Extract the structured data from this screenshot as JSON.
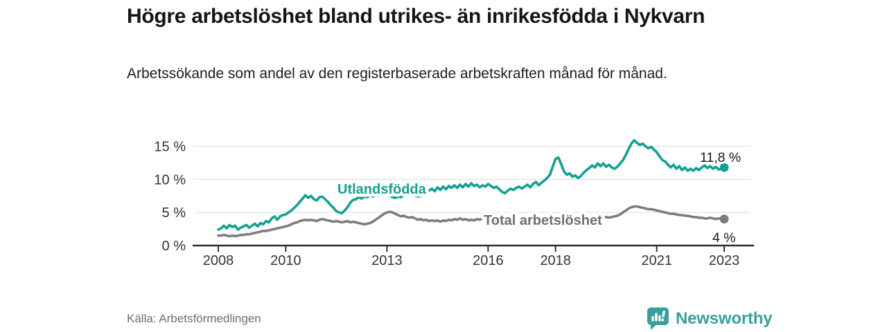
{
  "header": {
    "title": "Högre arbetslöshet bland utrikes- än inrikesfödda i Nykvarn",
    "subtitle": "Arbetssökande som andel av den registerbaserade arbetskraften månad för månad."
  },
  "footer": {
    "source": "Källa: Arbetsförmedlingen",
    "brand": "Newsworthy"
  },
  "colors": {
    "series_utlandsfodda": "#12a192",
    "series_total": "#7d7d7d",
    "brand_teal": "#38a09b",
    "axis": "#2e2e2e",
    "grid": "#d9d9d9"
  },
  "chart_data": {
    "type": "line",
    "title": "Högre arbetslöshet bland utrikes- än inrikesfödda i Nykvarn",
    "subtitle": "Arbetssökande som andel av den registerbaserade arbetskraften månad för månad.",
    "xlabel": "",
    "ylabel": "",
    "x_unit": "month",
    "x_range": [
      "2008-01",
      "2023-01"
    ],
    "xticks": [
      2008,
      2010,
      2013,
      2016,
      2018,
      2021,
      2023
    ],
    "yticks": [
      {
        "label": "0 %",
        "value": 0
      },
      {
        "label": "5 %",
        "value": 5
      },
      {
        "label": "10 %",
        "value": 10
      },
      {
        "label": "15 %",
        "value": 15
      }
    ],
    "ylim": [
      0,
      16.5
    ],
    "grid": "horizontal",
    "legend_position": "inline-labels",
    "series": [
      {
        "name": "Utlandsfödda",
        "color": "#12a192",
        "end_label": "11,8 %",
        "end_value": 11.8,
        "values": [
          2.4,
          2.6,
          3.0,
          2.6,
          3.1,
          2.8,
          3.0,
          2.4,
          2.7,
          2.9,
          3.1,
          2.7,
          3.0,
          3.3,
          2.9,
          3.4,
          3.2,
          3.7,
          3.5,
          4.1,
          4.4,
          3.9,
          4.4,
          4.6,
          4.7,
          5.0,
          5.3,
          5.7,
          6.1,
          6.6,
          7.1,
          7.6,
          7.2,
          7.5,
          7.0,
          6.8,
          7.3,
          7.4,
          7.0,
          6.6,
          6.1,
          5.7,
          5.2,
          5.0,
          4.9,
          5.3,
          5.8,
          6.5,
          6.9,
          7.0,
          7.3,
          7.1,
          7.4,
          7.3,
          7.6,
          7.4,
          7.7,
          7.5,
          7.8,
          7.9,
          7.8,
          7.5,
          7.3,
          7.2,
          7.4,
          7.3,
          7.6,
          7.8,
          7.6,
          7.8,
          7.5,
          7.4,
          7.5,
          7.7,
          8.0,
          8.3,
          8.6,
          8.2,
          8.8,
          8.4,
          8.9,
          8.5,
          9.0,
          8.7,
          9.1,
          8.7,
          9.2,
          8.8,
          9.3,
          8.9,
          9.4,
          9.0,
          9.2,
          8.8,
          9.1,
          8.9,
          9.3,
          9.0,
          8.7,
          8.9,
          8.5,
          8.1,
          7.9,
          8.3,
          8.6,
          8.4,
          8.7,
          8.9,
          8.6,
          8.9,
          9.2,
          8.8,
          9.3,
          9.6,
          9.1,
          9.5,
          9.8,
          10.2,
          10.7,
          11.9,
          13.1,
          13.3,
          12.3,
          11.2,
          10.7,
          10.9,
          10.4,
          10.6,
          10.2,
          10.5,
          11.0,
          11.4,
          11.7,
          12.1,
          11.8,
          12.4,
          12.0,
          12.4,
          11.9,
          12.2,
          11.8,
          11.6,
          11.9,
          12.4,
          12.9,
          13.7,
          14.6,
          15.4,
          15.9,
          15.5,
          15.2,
          15.4,
          15.0,
          14.7,
          14.9,
          14.5,
          14.1,
          13.5,
          12.9,
          12.7,
          12.2,
          11.8,
          12.2,
          11.6,
          12.0,
          11.4,
          11.8,
          11.3,
          11.6,
          11.3,
          11.7,
          11.4,
          11.8,
          12.1,
          11.7,
          12.0,
          11.6,
          11.9,
          11.5,
          11.6,
          11.8
        ]
      },
      {
        "name": "Total arbetslöshet",
        "color": "#7d7d7d",
        "end_label": "4 %",
        "end_value": 4.0,
        "values": [
          1.5,
          1.5,
          1.6,
          1.5,
          1.4,
          1.5,
          1.4,
          1.5,
          1.6,
          1.6,
          1.7,
          1.7,
          1.8,
          1.9,
          2.0,
          2.1,
          2.2,
          2.2,
          2.3,
          2.4,
          2.5,
          2.6,
          2.7,
          2.8,
          2.9,
          3.0,
          3.2,
          3.4,
          3.5,
          3.7,
          3.8,
          3.9,
          3.8,
          3.9,
          3.8,
          3.7,
          3.9,
          4.0,
          3.9,
          3.8,
          3.7,
          3.6,
          3.7,
          3.6,
          3.5,
          3.6,
          3.7,
          3.5,
          3.6,
          3.5,
          3.4,
          3.3,
          3.2,
          3.3,
          3.4,
          3.6,
          3.9,
          4.2,
          4.5,
          4.8,
          5.0,
          5.1,
          5.0,
          4.8,
          4.6,
          4.4,
          4.5,
          4.3,
          4.2,
          4.3,
          4.1,
          3.9,
          4.0,
          3.8,
          3.9,
          3.7,
          3.8,
          3.7,
          3.8,
          3.6,
          3.8,
          3.7,
          3.9,
          3.8,
          4.0,
          3.9,
          4.1,
          3.9,
          4.0,
          3.8,
          3.9,
          3.8,
          4.0,
          3.9,
          4.1,
          4.0,
          4.1,
          3.9,
          4.0,
          3.8,
          3.9,
          3.8,
          3.9,
          4.0,
          3.9,
          4.0,
          4.1,
          4.0,
          3.9,
          4.0,
          4.1,
          4.0,
          3.9,
          3.8,
          3.9,
          4.0,
          3.9,
          3.8,
          3.9,
          4.0,
          4.1,
          4.0,
          3.9,
          3.8,
          3.9,
          3.8,
          3.9,
          4.0,
          3.9,
          4.0,
          4.1,
          4.2,
          4.1,
          4.2,
          4.1,
          4.2,
          4.3,
          4.2,
          4.3,
          4.2,
          4.3,
          4.4,
          4.5,
          4.7,
          5.0,
          5.3,
          5.6,
          5.8,
          5.9,
          5.9,
          5.8,
          5.7,
          5.6,
          5.5,
          5.5,
          5.4,
          5.3,
          5.2,
          5.1,
          5.0,
          4.9,
          4.8,
          4.8,
          4.7,
          4.6,
          4.6,
          4.5,
          4.5,
          4.4,
          4.3,
          4.3,
          4.2,
          4.2,
          4.1,
          4.1,
          4.2,
          4.1,
          4.0,
          4.1,
          4.0,
          4.0
        ]
      }
    ]
  }
}
